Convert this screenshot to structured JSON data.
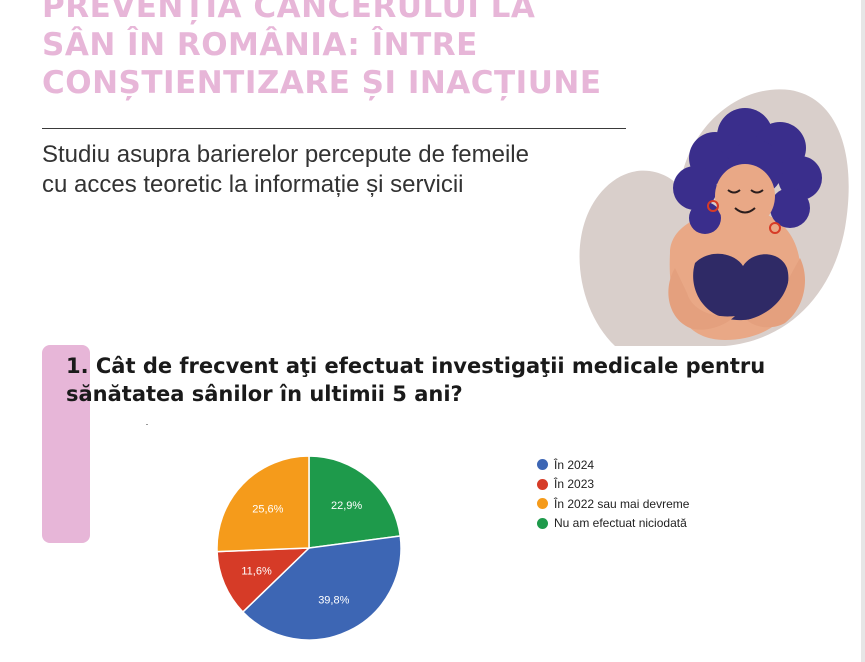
{
  "header": {
    "title_lines": [
      "PREVENȚIA CANCERULUI LA",
      "SÂN ÎN ROMÂNIA: ÎNTRE",
      "CONȘTIENTIZARE ȘI INACȚIUNE"
    ],
    "subtitle_lines": [
      "Studiu asupra barierelor percepute de femeile",
      "cu acces teoretic la informație și servicii"
    ]
  },
  "colors": {
    "title_pink": "#e7b6d8",
    "accent_pink": "#e7b6d8",
    "hair": "#3a2e8c",
    "skin": "#e9a886",
    "top": "#2f2a66",
    "blob": "#d9cfcb"
  },
  "icons": {
    "illustration": "woman-hugging-herself-illustration"
  },
  "question": {
    "lines": [
      "1. Cât de frecvent aţi efectuat investigaţii medicale pentru",
      "sănătatea sânilor în ultimii 5 ani?"
    ]
  },
  "chart_data": {
    "type": "pie",
    "title": "",
    "categories": [
      "În 2024",
      "În 2023",
      "În 2022 sau mai devreme",
      "Nu am efectuat niciodată"
    ],
    "values": [
      39.8,
      11.6,
      25.6,
      22.9
    ],
    "value_labels": [
      "39,8%",
      "11,6%",
      "25,6%",
      "22,9%"
    ],
    "colors": [
      "#3d66b4",
      "#d63b27",
      "#f59b1b",
      "#1e9a4b"
    ],
    "legend": "right",
    "start": "top, clockwise from 2024 ending with Nu am efectuat niciodată"
  }
}
